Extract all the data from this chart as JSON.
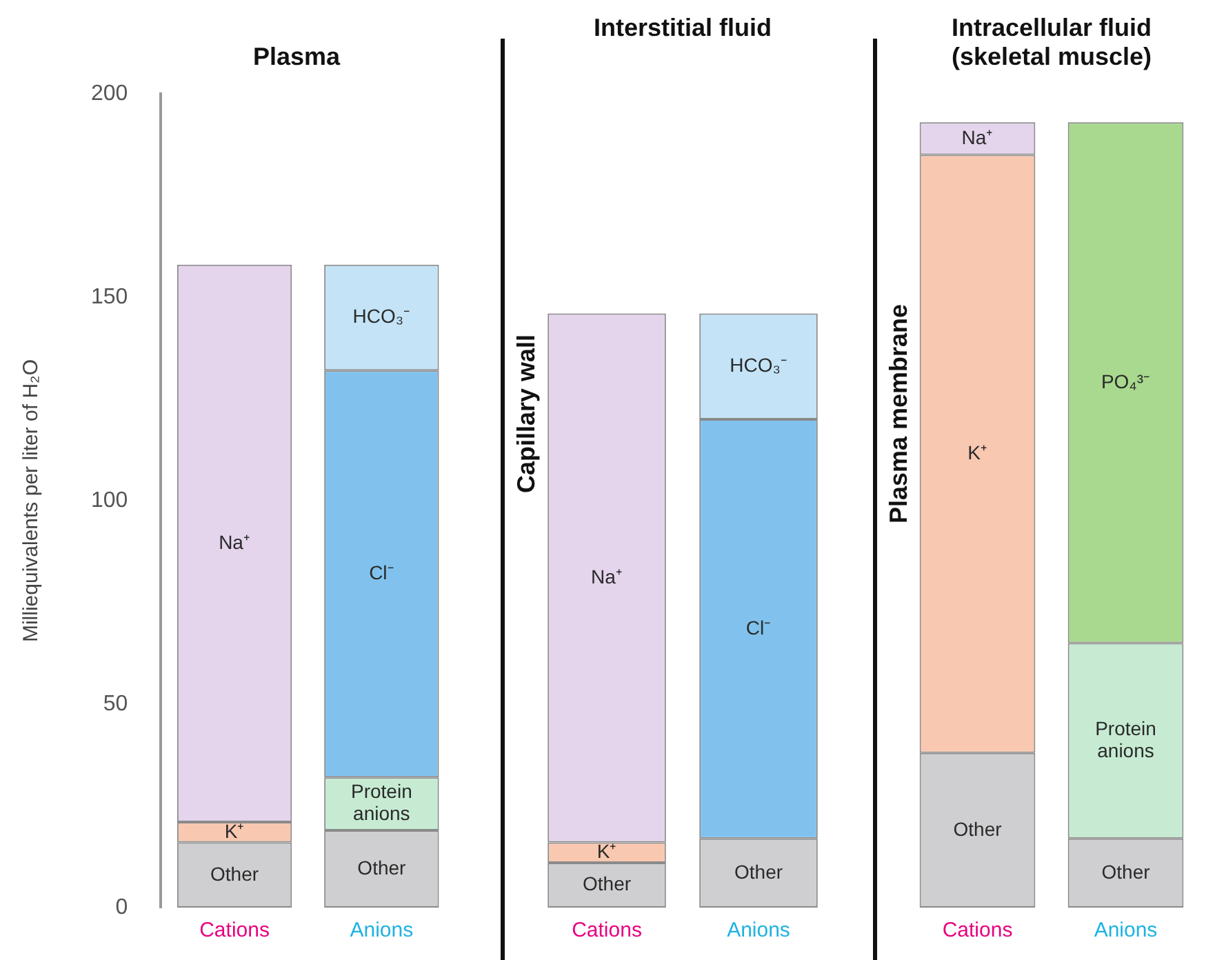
{
  "chart_data": [
    {
      "type": "bar",
      "title": "Plasma",
      "ylabel": "Milliequivalents per liter of H₂O",
      "categories": [
        "Cations",
        "Anions"
      ],
      "stacked": true,
      "ylim": [
        0,
        200
      ],
      "yticks": [
        0,
        50,
        100,
        150,
        200
      ],
      "series": [
        {
          "name": "Other",
          "color": "#cfcfd1",
          "values": [
            16,
            19
          ]
        },
        {
          "name": "K⁺",
          "color": "#f9c8b0",
          "values": [
            5,
            null
          ]
        },
        {
          "name": "Na⁺",
          "color": "#e4d4ec",
          "values": [
            137,
            null
          ]
        },
        {
          "name": "Protein anions",
          "color": "#c6ebd2",
          "values": [
            null,
            13
          ]
        },
        {
          "name": "Cl⁻",
          "color": "#80c2ed",
          "values": [
            null,
            100
          ]
        },
        {
          "name": "HCO₃⁻",
          "color": "#c4e3f7",
          "values": [
            null,
            26
          ]
        }
      ]
    },
    {
      "type": "bar",
      "title": "Interstitial fluid",
      "categories": [
        "Cations",
        "Anions"
      ],
      "stacked": true,
      "ylim": [
        0,
        200
      ],
      "yticks": [
        0,
        50,
        100,
        150,
        200
      ],
      "tick_labels": "x",
      "annotations": [
        "Capillary wall"
      ],
      "series": [
        {
          "name": "Other",
          "color": "#cfcfd1",
          "values": [
            11,
            17
          ]
        },
        {
          "name": "K⁺",
          "color": "#f9c8b0",
          "values": [
            5,
            null
          ]
        },
        {
          "name": "Na⁺",
          "color": "#e4d4ec",
          "values": [
            130,
            null
          ]
        },
        {
          "name": "Cl⁻",
          "color": "#80c2ed",
          "values": [
            null,
            103
          ]
        },
        {
          "name": "HCO₃⁻",
          "color": "#c4e3f7",
          "values": [
            null,
            26
          ]
        }
      ]
    },
    {
      "type": "bar",
      "title": "Intracellular fluid (skeletal muscle)",
      "categories": [
        "Cations",
        "Anions"
      ],
      "stacked": true,
      "ylim": [
        0,
        200
      ],
      "yticks": [
        0,
        50,
        100,
        150,
        200
      ],
      "tick_labels": "x",
      "annotations": [
        "Plasma membrane"
      ],
      "series": [
        {
          "name": "Other",
          "color": "#cfcfd1",
          "values": [
            38,
            17
          ]
        },
        {
          "name": "K⁺",
          "color": "#f9c8b0",
          "values": [
            147,
            null
          ]
        },
        {
          "name": "Na⁺",
          "color": "#e4d4ec",
          "values": [
            8,
            null
          ]
        },
        {
          "name": "Protein anions",
          "color": "#c6ebd2",
          "values": [
            null,
            48
          ]
        },
        {
          "name": "PO₄³⁻",
          "color": "#a8d98e",
          "values": [
            null,
            128
          ]
        }
      ]
    }
  ]
}
